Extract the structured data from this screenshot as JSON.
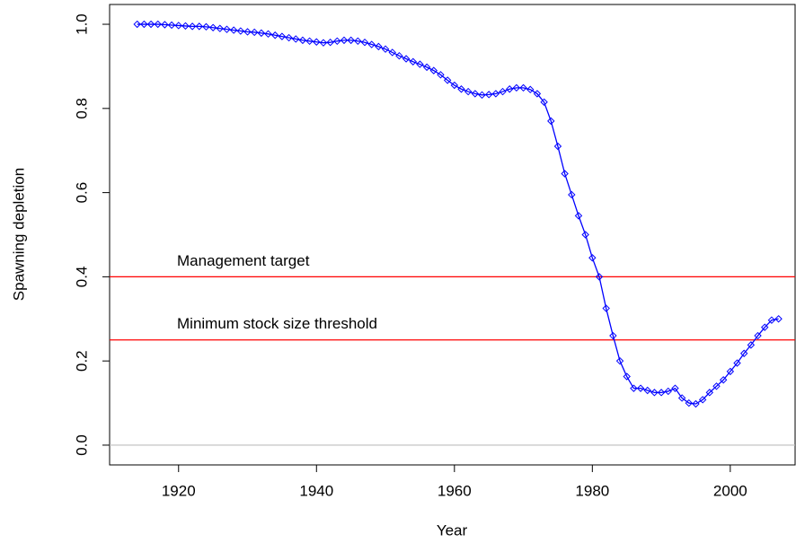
{
  "chart_data": {
    "type": "line",
    "x_label": "Year",
    "y_label": "Spawning depletion",
    "x": [
      1914,
      1915,
      1916,
      1917,
      1918,
      1919,
      1920,
      1921,
      1922,
      1923,
      1924,
      1925,
      1926,
      1927,
      1928,
      1929,
      1930,
      1931,
      1932,
      1933,
      1934,
      1935,
      1936,
      1937,
      1938,
      1939,
      1940,
      1941,
      1942,
      1943,
      1944,
      1945,
      1946,
      1947,
      1948,
      1949,
      1950,
      1951,
      1952,
      1953,
      1954,
      1955,
      1956,
      1957,
      1958,
      1959,
      1960,
      1961,
      1962,
      1963,
      1964,
      1965,
      1966,
      1967,
      1968,
      1969,
      1970,
      1971,
      1972,
      1973,
      1974,
      1975,
      1976,
      1977,
      1978,
      1979,
      1980,
      1981,
      1982,
      1983,
      1984,
      1985,
      1986,
      1987,
      1988,
      1989,
      1990,
      1991,
      1992,
      1993,
      1994,
      1995,
      1996,
      1997,
      1998,
      1999,
      2000,
      2001,
      2002,
      2003,
      2004,
      2005,
      2006,
      2007
    ],
    "series": [
      {
        "name": "Spawning depletion",
        "color": "#0000ff",
        "values": [
          1.0,
          1.0,
          1.0,
          1.0,
          0.999,
          0.998,
          0.997,
          0.996,
          0.995,
          0.995,
          0.994,
          0.992,
          0.99,
          0.988,
          0.986,
          0.984,
          0.982,
          0.981,
          0.979,
          0.977,
          0.974,
          0.971,
          0.968,
          0.965,
          0.962,
          0.96,
          0.958,
          0.956,
          0.957,
          0.96,
          0.962,
          0.962,
          0.96,
          0.957,
          0.952,
          0.947,
          0.941,
          0.933,
          0.925,
          0.918,
          0.911,
          0.905,
          0.898,
          0.89,
          0.88,
          0.867,
          0.855,
          0.846,
          0.84,
          0.835,
          0.832,
          0.833,
          0.835,
          0.84,
          0.846,
          0.849,
          0.849,
          0.845,
          0.835,
          0.815,
          0.77,
          0.71,
          0.645,
          0.595,
          0.545,
          0.5,
          0.445,
          0.4,
          0.325,
          0.26,
          0.2,
          0.163,
          0.135,
          0.135,
          0.13,
          0.125,
          0.125,
          0.128,
          0.135,
          0.112,
          0.1,
          0.098,
          0.108,
          0.125,
          0.14,
          0.155,
          0.175,
          0.195,
          0.218,
          0.238,
          0.26,
          0.28,
          0.297,
          0.3
        ]
      }
    ],
    "hlines": [
      {
        "value": 0.4,
        "color": "#ff0000",
        "label": "Management target"
      },
      {
        "value": 0.25,
        "color": "#ff0000",
        "label": "Minimum stock size threshold"
      },
      {
        "value": 0,
        "color": "#bebebe"
      }
    ],
    "xlim": [
      1910,
      2009.4
    ],
    "xticks": [
      1920,
      1940,
      1960,
      1980,
      2000
    ],
    "ylim": [
      -0.047,
      1.047
    ],
    "yticks": [
      {
        "value": 0,
        "label": "0.0"
      },
      0.2,
      0.4,
      0.6,
      0.8,
      {
        "value": 1,
        "label": "1.0"
      }
    ]
  }
}
